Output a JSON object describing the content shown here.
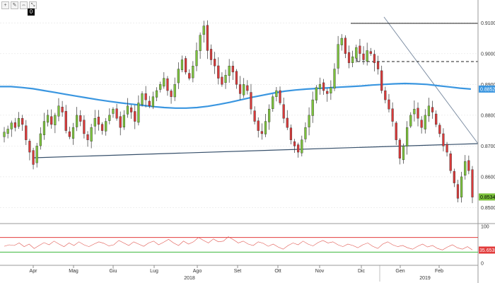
{
  "toolbar": {
    "buttons": [
      "+",
      "✎",
      "⇔",
      "⤡"
    ],
    "zero_label": "0"
  },
  "chart_data": {
    "type": "candlestick",
    "title": "",
    "price_axis": {
      "ticks": [
        "0.91000",
        "0.90000",
        "0.89000",
        "0.88000",
        "0.87000",
        "0.86000",
        "0.85000"
      ],
      "range": [
        0.8455,
        0.9165
      ]
    },
    "last_price": "0.85345",
    "ma_label": "0.8852",
    "ma_color": "#3a96e0",
    "up_color": "#7cc23c",
    "down_color": "#d93a3a",
    "months": [
      "Apr",
      "Mag",
      "Giu",
      "Lug",
      "Ago",
      "Set",
      "Ott",
      "Nov",
      "Dic",
      "Gen",
      "Feb"
    ],
    "years": [
      "2018",
      "2019"
    ],
    "closes": [
      0.8745,
      0.8755,
      0.8775,
      0.876,
      0.879,
      0.877,
      0.872,
      0.868,
      0.864,
      0.87,
      0.874,
      0.878,
      0.88,
      0.877,
      0.88,
      0.883,
      0.881,
      0.875,
      0.873,
      0.876,
      0.88,
      0.878,
      0.874,
      0.872,
      0.876,
      0.879,
      0.877,
      0.875,
      0.878,
      0.88,
      0.882,
      0.879,
      0.876,
      0.88,
      0.883,
      0.881,
      0.878,
      0.884,
      0.887,
      0.885,
      0.883,
      0.886,
      0.888,
      0.89,
      0.892,
      0.888,
      0.886,
      0.89,
      0.895,
      0.898,
      0.894,
      0.892,
      0.896,
      0.901,
      0.906,
      0.909,
      0.901,
      0.898,
      0.896,
      0.892,
      0.89,
      0.893,
      0.896,
      0.894,
      0.89,
      0.887,
      0.89,
      0.888,
      0.882,
      0.878,
      0.875,
      0.874,
      0.878,
      0.882,
      0.886,
      0.888,
      0.884,
      0.879,
      0.876,
      0.872,
      0.87,
      0.868,
      0.872,
      0.876,
      0.88,
      0.885,
      0.889,
      0.89,
      0.888,
      0.887,
      0.889,
      0.895,
      0.903,
      0.905,
      0.9,
      0.897,
      0.899,
      0.902,
      0.9,
      0.898,
      0.901,
      0.9,
      0.897,
      0.895,
      0.888,
      0.885,
      0.882,
      0.878,
      0.872,
      0.866,
      0.87,
      0.876,
      0.88,
      0.882,
      0.879,
      0.876,
      0.88,
      0.883,
      0.881,
      0.877,
      0.874,
      0.87,
      0.868,
      0.862,
      0.858,
      0.853,
      0.86,
      0.865,
      0.862,
      0.8534
    ],
    "ma200": [
      0.8893,
      0.8893,
      0.889,
      0.8886,
      0.888,
      0.8874,
      0.8868,
      0.8862,
      0.8856,
      0.885,
      0.8845,
      0.884,
      0.8836,
      0.8832,
      0.8828,
      0.8825,
      0.8823,
      0.8823,
      0.8825,
      0.8829,
      0.8835,
      0.8842,
      0.885,
      0.8858,
      0.8865,
      0.8872,
      0.8878,
      0.8882,
      0.8885,
      0.8887,
      0.8889,
      0.8891,
      0.8893,
      0.8895,
      0.8898,
      0.89,
      0.8902,
      0.8903,
      0.8902,
      0.89,
      0.8896,
      0.8892,
      0.8888,
      0.8885
    ],
    "rsi": {
      "range": [
        0,
        100
      ],
      "ticks": [
        "100",
        "0"
      ],
      "overbought": 70,
      "oversold": 30,
      "last_value": "35.6535",
      "values": [
        46,
        50,
        48,
        55,
        45,
        52,
        40,
        48,
        56,
        50,
        60,
        52,
        45,
        55,
        48,
        58,
        50,
        45,
        52,
        58,
        54,
        47,
        50,
        62,
        55,
        48,
        58,
        52,
        46,
        55,
        60,
        50,
        57,
        65,
        55,
        48,
        60,
        52,
        58,
        70,
        62,
        55,
        66,
        58,
        60,
        72,
        64,
        55,
        60,
        52,
        48,
        58,
        54,
        46,
        52,
        44,
        38,
        48,
        55,
        50,
        60,
        52,
        47,
        56,
        62,
        55,
        58,
        50,
        45,
        52,
        48,
        42,
        50,
        55,
        46,
        40,
        52,
        58,
        50,
        45,
        48,
        42,
        38,
        46,
        52,
        44,
        48,
        40,
        36,
        44,
        50,
        42,
        38,
        45,
        36
      ]
    }
  }
}
